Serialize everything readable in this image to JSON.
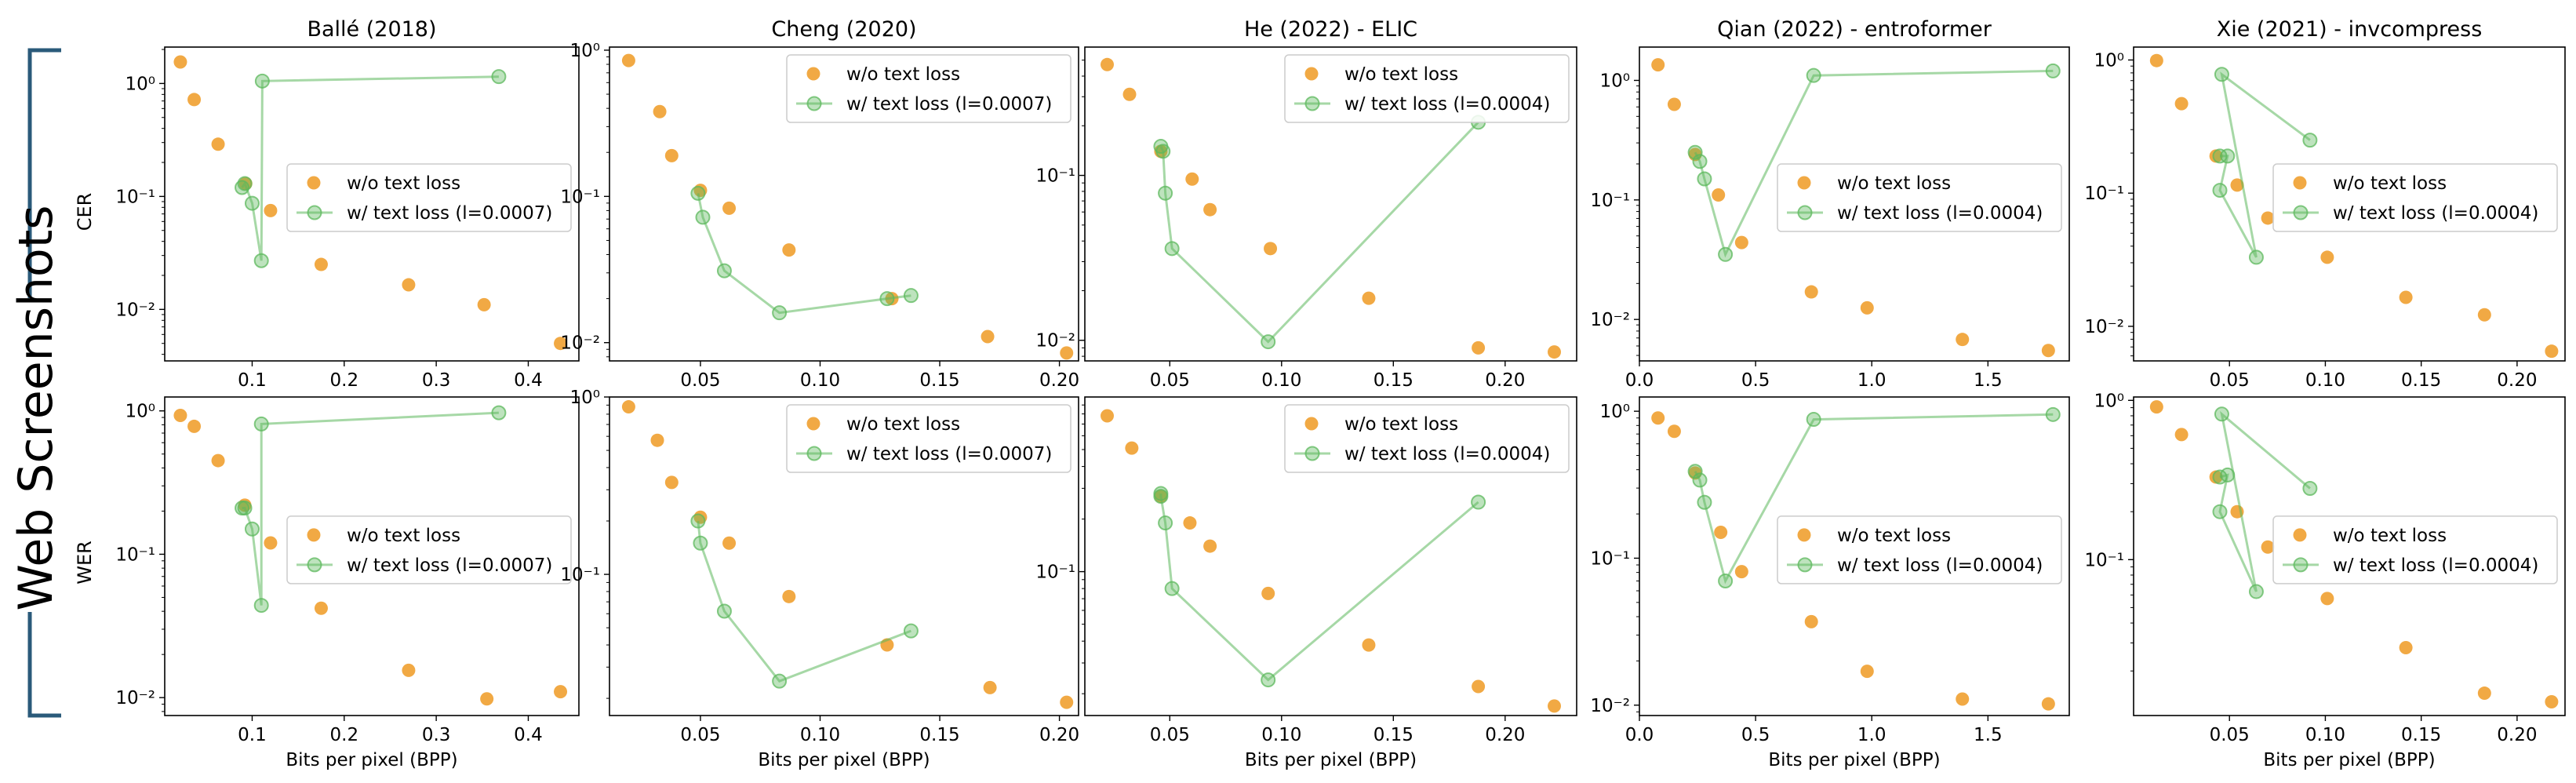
{
  "figure": {
    "side_label": "Web Screenshots",
    "row_ylabels": [
      "CER",
      "WER"
    ],
    "xlabel": "Bits per pixel (BPP)",
    "column_titles": [
      "Ballé (2018)",
      "Cheng (2020)",
      "He (2022) - ELIC",
      "Qian (2022) - entroformer",
      "Xie (2021) - invcompress"
    ],
    "colors": {
      "baseline": "#f0a030",
      "text_loss": "#5cb85c",
      "bracket": "#2a5a7a"
    }
  },
  "chart_data": [
    {
      "type": "scatter",
      "title": "Ballé (2018)",
      "ylabel": "CER",
      "xlabel": "",
      "yscale": "log",
      "ylim": [
        0.0035,
        2.1
      ],
      "xlim": [
        0.005,
        0.455
      ],
      "xticks": [
        0.1,
        0.2,
        0.3,
        0.4
      ],
      "xtick_labels": [
        "0.1",
        "0.2",
        "0.3",
        "0.4"
      ],
      "yticks": [
        0.01,
        0.1,
        1
      ],
      "ytick_labels": [
        "10⁻²",
        "10⁻¹",
        "10⁰"
      ],
      "legend_position": "center-right",
      "series": [
        {
          "name": "w/o text loss",
          "kind": "scatter",
          "x": [
            0.022,
            0.037,
            0.063,
            0.093,
            0.12,
            0.175,
            0.27,
            0.352,
            0.435
          ],
          "y": [
            1.55,
            0.72,
            0.29,
            0.13,
            0.075,
            0.025,
            0.0165,
            0.011,
            0.005
          ]
        },
        {
          "name": "w/ text loss (l=0.0007)",
          "kind": "line",
          "x": [
            0.089,
            0.092,
            0.1,
            0.11,
            0.111,
            0.368
          ],
          "y": [
            0.12,
            0.13,
            0.087,
            0.027,
            1.05,
            1.15
          ]
        }
      ]
    },
    {
      "type": "scatter",
      "title": "Cheng (2020)",
      "ylabel": "",
      "xlabel": "",
      "yscale": "log",
      "ylim": [
        0.0075,
        1.05
      ],
      "xlim": [
        0.012,
        0.208
      ],
      "xticks": [
        0.05,
        0.1,
        0.15,
        0.2
      ],
      "xtick_labels": [
        "0.05",
        "0.10",
        "0.15",
        "0.20"
      ],
      "yticks": [
        0.01,
        0.1,
        1
      ],
      "ytick_labels": [
        "10⁻²",
        "10⁻¹",
        "10⁰"
      ],
      "legend_position": "top-right",
      "series": [
        {
          "name": "w/o text loss",
          "kind": "scatter",
          "x": [
            0.02,
            0.033,
            0.038,
            0.05,
            0.062,
            0.087,
            0.13,
            0.17,
            0.203
          ],
          "y": [
            0.85,
            0.38,
            0.19,
            0.11,
            0.083,
            0.043,
            0.02,
            0.011,
            0.0085
          ]
        },
        {
          "name": "w/ text loss (l=0.0007)",
          "kind": "line",
          "x": [
            0.049,
            0.051,
            0.06,
            0.083,
            0.128,
            0.138
          ],
          "y": [
            0.105,
            0.072,
            0.031,
            0.016,
            0.02,
            0.021
          ]
        }
      ]
    },
    {
      "type": "scatter",
      "title": "He (2022) - ELIC",
      "ylabel": "",
      "xlabel": "",
      "yscale": "log",
      "ylim": [
        0.0075,
        0.6
      ],
      "xlim": [
        0.012,
        0.232
      ],
      "xticks": [
        0.05,
        0.1,
        0.15,
        0.2
      ],
      "xtick_labels": [
        "0.05",
        "0.10",
        "0.15",
        "0.20"
      ],
      "yticks": [
        0.01,
        0.1
      ],
      "ytick_labels": [
        "10⁻²",
        "10⁻¹"
      ],
      "legend_position": "top-right",
      "series": [
        {
          "name": "w/o text loss",
          "kind": "scatter",
          "x": [
            0.022,
            0.032,
            0.046,
            0.06,
            0.068,
            0.095,
            0.139,
            0.188,
            0.222
          ],
          "y": [
            0.47,
            0.31,
            0.14,
            0.095,
            0.062,
            0.036,
            0.018,
            0.009,
            0.0085
          ]
        },
        {
          "name": "w/ text loss (l=0.0004)",
          "kind": "line",
          "x": [
            0.046,
            0.047,
            0.048,
            0.051,
            0.094,
            0.188
          ],
          "y": [
            0.15,
            0.14,
            0.078,
            0.036,
            0.0098,
            0.21
          ]
        }
      ]
    },
    {
      "type": "scatter",
      "title": "Qian (2022) - entroformer",
      "ylabel": "",
      "xlabel": "",
      "yscale": "log",
      "ylim": [
        0.0045,
        1.9
      ],
      "xlim": [
        0.0,
        1.85
      ],
      "xticks": [
        0.0,
        0.5,
        1.0,
        1.5
      ],
      "xtick_labels": [
        "0.0",
        "0.5",
        "1.0",
        "1.5"
      ],
      "yticks": [
        0.01,
        0.1,
        1
      ],
      "ytick_labels": [
        "10⁻²",
        "10⁻¹",
        "10⁰"
      ],
      "legend_position": "center-right",
      "series": [
        {
          "name": "w/o text loss",
          "kind": "scatter",
          "x": [
            0.08,
            0.15,
            0.24,
            0.34,
            0.44,
            0.74,
            0.98,
            1.39,
            1.76
          ],
          "y": [
            1.35,
            0.63,
            0.24,
            0.11,
            0.044,
            0.017,
            0.0125,
            0.0068,
            0.0055
          ]
        },
        {
          "name": "w/ text loss (l=0.0004)",
          "kind": "line",
          "x": [
            0.24,
            0.26,
            0.28,
            0.37,
            0.75,
            1.78
          ],
          "y": [
            0.25,
            0.21,
            0.15,
            0.035,
            1.1,
            1.2
          ]
        }
      ]
    },
    {
      "type": "scatter",
      "title": "Xie (2021) - invcompress",
      "ylabel": "",
      "xlabel": "",
      "yscale": "log",
      "ylim": [
        0.0055,
        1.25
      ],
      "xlim": [
        0.0,
        0.225
      ],
      "xticks": [
        0.05,
        0.1,
        0.15,
        0.2
      ],
      "xtick_labels": [
        "0.05",
        "0.10",
        "0.15",
        "0.20"
      ],
      "yticks": [
        0.01,
        0.1,
        1
      ],
      "ytick_labels": [
        "10⁻²",
        "10⁻¹",
        "10⁰"
      ],
      "legend_position": "center-right",
      "series": [
        {
          "name": "w/o text loss",
          "kind": "scatter",
          "x": [
            0.012,
            0.025,
            0.043,
            0.054,
            0.07,
            0.101,
            0.142,
            0.183,
            0.218
          ],
          "y": [
            0.99,
            0.47,
            0.19,
            0.115,
            0.065,
            0.033,
            0.0165,
            0.0122,
            0.0065
          ]
        },
        {
          "name": "w/ text loss (l=0.0004)",
          "kind": "line",
          "x": [
            0.045,
            0.049,
            0.045,
            0.064,
            0.046,
            0.092
          ],
          "y": [
            0.19,
            0.19,
            0.105,
            0.033,
            0.78,
            0.25
          ]
        }
      ]
    },
    {
      "type": "scatter",
      "title": "",
      "ylabel": "WER",
      "xlabel": "Bits per pixel (BPP)",
      "yscale": "log",
      "ylim": [
        0.0075,
        1.25
      ],
      "xlim": [
        0.005,
        0.455
      ],
      "xticks": [
        0.1,
        0.2,
        0.3,
        0.4
      ],
      "xtick_labels": [
        "0.1",
        "0.2",
        "0.3",
        "0.4"
      ],
      "yticks": [
        0.01,
        0.1,
        1
      ],
      "ytick_labels": [
        "10⁻²",
        "10⁻¹",
        "10⁰"
      ],
      "legend_position": "center-right",
      "series": [
        {
          "name": "w/o text loss",
          "kind": "scatter",
          "x": [
            0.022,
            0.037,
            0.063,
            0.092,
            0.12,
            0.175,
            0.27,
            0.355,
            0.435
          ],
          "y": [
            0.93,
            0.78,
            0.45,
            0.22,
            0.12,
            0.042,
            0.0155,
            0.0098,
            0.011
          ]
        },
        {
          "name": "w/ text loss (l=0.0007)",
          "kind": "line",
          "x": [
            0.089,
            0.092,
            0.1,
            0.11,
            0.11,
            0.368
          ],
          "y": [
            0.21,
            0.21,
            0.15,
            0.044,
            0.81,
            0.97
          ]
        }
      ]
    },
    {
      "type": "scatter",
      "title": "",
      "ylabel": "",
      "xlabel": "Bits per pixel (BPP)",
      "yscale": "log",
      "ylim": [
        0.016,
        1.0
      ],
      "xlim": [
        0.012,
        0.208
      ],
      "xticks": [
        0.05,
        0.1,
        0.15,
        0.2
      ],
      "xtick_labels": [
        "0.05",
        "0.10",
        "0.15",
        "0.20"
      ],
      "yticks": [
        0.1,
        1
      ],
      "ytick_labels": [
        "10⁻¹",
        "10⁰"
      ],
      "legend_position": "top-right",
      "series": [
        {
          "name": "w/o text loss",
          "kind": "scatter",
          "x": [
            0.02,
            0.032,
            0.038,
            0.05,
            0.062,
            0.087,
            0.128,
            0.171,
            0.203
          ],
          "y": [
            0.88,
            0.57,
            0.33,
            0.21,
            0.15,
            0.075,
            0.04,
            0.023,
            0.019
          ]
        },
        {
          "name": "w/ text loss (l=0.0007)",
          "kind": "line",
          "x": [
            0.049,
            0.05,
            0.06,
            0.083,
            0.138
          ],
          "y": [
            0.2,
            0.15,
            0.062,
            0.025,
            0.048
          ]
        }
      ]
    },
    {
      "type": "scatter",
      "title": "",
      "ylabel": "",
      "xlabel": "Bits per pixel (BPP)",
      "yscale": "log",
      "ylim": [
        0.015,
        1.0
      ],
      "xlim": [
        0.012,
        0.232
      ],
      "xticks": [
        0.05,
        0.1,
        0.15,
        0.2
      ],
      "xtick_labels": [
        "0.05",
        "0.10",
        "0.15",
        "0.20"
      ],
      "yticks": [
        0.1
      ],
      "ytick_labels": [
        "10⁻¹"
      ],
      "legend_position": "top-right",
      "series": [
        {
          "name": "w/o text loss",
          "kind": "scatter",
          "x": [
            0.022,
            0.033,
            0.046,
            0.059,
            0.068,
            0.094,
            0.139,
            0.188,
            0.222
          ],
          "y": [
            0.78,
            0.51,
            0.27,
            0.19,
            0.14,
            0.075,
            0.038,
            0.022,
            0.017
          ]
        },
        {
          "name": "w/ text loss (l=0.0004)",
          "kind": "line",
          "x": [
            0.046,
            0.046,
            0.048,
            0.051,
            0.094,
            0.188
          ],
          "y": [
            0.28,
            0.27,
            0.19,
            0.08,
            0.024,
            0.25
          ]
        }
      ]
    },
    {
      "type": "scatter",
      "title": "",
      "ylabel": "",
      "xlabel": "Bits per pixel (BPP)",
      "yscale": "log",
      "ylim": [
        0.0085,
        1.25
      ],
      "xlim": [
        0.0,
        1.85
      ],
      "xticks": [
        0.0,
        0.5,
        1.0,
        1.5
      ],
      "xtick_labels": [
        "0.0",
        "0.5",
        "1.0",
        "1.5"
      ],
      "yticks": [
        0.01,
        0.1,
        1
      ],
      "ytick_labels": [
        "10⁻²",
        "10⁻¹",
        "10⁰"
      ],
      "legend_position": "center-right",
      "series": [
        {
          "name": "w/o text loss",
          "kind": "scatter",
          "x": [
            0.08,
            0.15,
            0.24,
            0.35,
            0.44,
            0.74,
            0.98,
            1.39,
            1.76
          ],
          "y": [
            0.9,
            0.73,
            0.38,
            0.15,
            0.081,
            0.037,
            0.017,
            0.011,
            0.0102
          ]
        },
        {
          "name": "w/ text loss (l=0.0004)",
          "kind": "line",
          "x": [
            0.24,
            0.26,
            0.28,
            0.37,
            0.75,
            1.78
          ],
          "y": [
            0.39,
            0.34,
            0.24,
            0.07,
            0.88,
            0.95
          ]
        }
      ]
    },
    {
      "type": "scatter",
      "title": "",
      "ylabel": "",
      "xlabel": "Bits per pixel (BPP)",
      "yscale": "log",
      "ylim": [
        0.0105,
        1.05
      ],
      "xlim": [
        0.0,
        0.225
      ],
      "xticks": [
        0.05,
        0.1,
        0.15,
        0.2
      ],
      "xtick_labels": [
        "0.05",
        "0.10",
        "0.15",
        "0.20"
      ],
      "yticks": [
        0.1,
        1
      ],
      "ytick_labels": [
        "10⁻¹",
        "10⁰"
      ],
      "legend_position": "center-right",
      "series": [
        {
          "name": "w/o text loss",
          "kind": "scatter",
          "x": [
            0.012,
            0.025,
            0.043,
            0.054,
            0.07,
            0.101,
            0.142,
            0.183,
            0.218
          ],
          "y": [
            0.91,
            0.61,
            0.33,
            0.2,
            0.12,
            0.057,
            0.028,
            0.0145,
            0.0128
          ]
        },
        {
          "name": "w/ text loss (l=0.0004)",
          "kind": "line",
          "x": [
            0.045,
            0.049,
            0.045,
            0.064,
            0.046,
            0.092
          ],
          "y": [
            0.33,
            0.34,
            0.2,
            0.063,
            0.82,
            0.28
          ]
        }
      ]
    }
  ]
}
